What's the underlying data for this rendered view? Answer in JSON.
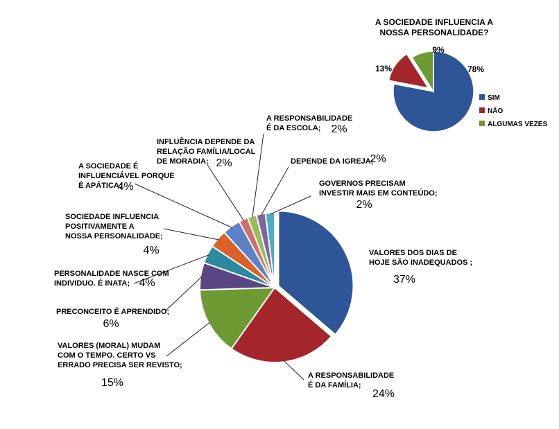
{
  "chart_data": [
    {
      "type": "pie",
      "title": "A SOCIEDADE INFLUENCIA A NOSSA PERSONALIDADE?",
      "title_lines": [
        "A SOCIEDADE INFLUENCIA A",
        "NOSSA PERSONALIDADE?"
      ],
      "legend_position": "right",
      "slices": [
        {
          "label": "SIM",
          "value": 78,
          "pct_text": "78%",
          "color": "#2E5597",
          "exploded": false
        },
        {
          "label": "NÃO",
          "value": 13,
          "pct_text": "13%",
          "color": "#A4262A",
          "exploded": true
        },
        {
          "label": "ALGUMAS VEZES",
          "value": 9,
          "pct_text": "9%",
          "color": "#6E9A34",
          "exploded": false
        }
      ]
    },
    {
      "type": "pie",
      "title": "",
      "slices": [
        {
          "label_lines": [
            "VALORES DOS DIAS DE",
            "HOJE SÃO INADEQUADOS ;"
          ],
          "value": 37,
          "pct_text": "37%",
          "color": "#2E5597"
        },
        {
          "label_lines": [
            "A RESPONSABILIDADE",
            "É  DA FAMÍLIA;"
          ],
          "value": 24,
          "pct_text": "24%",
          "color": "#A4262A"
        },
        {
          "label_lines": [
            "VALORES (MORAL) MUDAM",
            "COM O TEMPO. CERTO VS",
            "ERRADO PRECISA SER REVISTO;"
          ],
          "value": 15,
          "pct_text": "15%",
          "color": "#6E9A34"
        },
        {
          "label_lines": [
            "PRECONCEITO É APRENDIDO;"
          ],
          "value": 6,
          "pct_text": "6%",
          "color": "#5A4585"
        },
        {
          "label_lines": [
            "PERSONALIDADE NASCE COM",
            "INDIVIDUO. É INATA;"
          ],
          "value": 4,
          "pct_text": "4%",
          "color": "#2B8AA0"
        },
        {
          "label_lines": [
            "SOCIEDADE INFLUENCIA",
            "POSITIVAMENTE A",
            "NOSSA PERSONALIDADE;"
          ],
          "value": 4,
          "pct_text": "4%",
          "color": "#D9622B"
        },
        {
          "label_lines": [
            "A SOCIEDADE É",
            "INFLUENCIÁVEL PORQUE",
            "É  APÁTICA;"
          ],
          "value": 4,
          "pct_text": "4%",
          "color": "#5C81C7"
        },
        {
          "label_lines": [
            "INFLUÊNCIA DEPENDE DA",
            "RELAÇÃO FAMÍLIA/LOCAL",
            "DE MORADIA;"
          ],
          "value": 2,
          "pct_text": "2%",
          "color": "#D0706E"
        },
        {
          "label_lines": [
            "A RESPONSABILIDADE",
            "É  DA ESCOLA;"
          ],
          "value": 2,
          "pct_text": "2%",
          "color": "#9BBB59"
        },
        {
          "label_lines": [
            "DEPENDE DA IGREJA;"
          ],
          "value": 2,
          "pct_text": "2%",
          "color": "#8064A2"
        },
        {
          "label_lines": [
            "GOVERNOS PRECISAM",
            "INVESTIR MAIS EM CONTEÚDO;"
          ],
          "value": 2,
          "pct_text": "2%",
          "color": "#4BACC6"
        }
      ]
    }
  ]
}
